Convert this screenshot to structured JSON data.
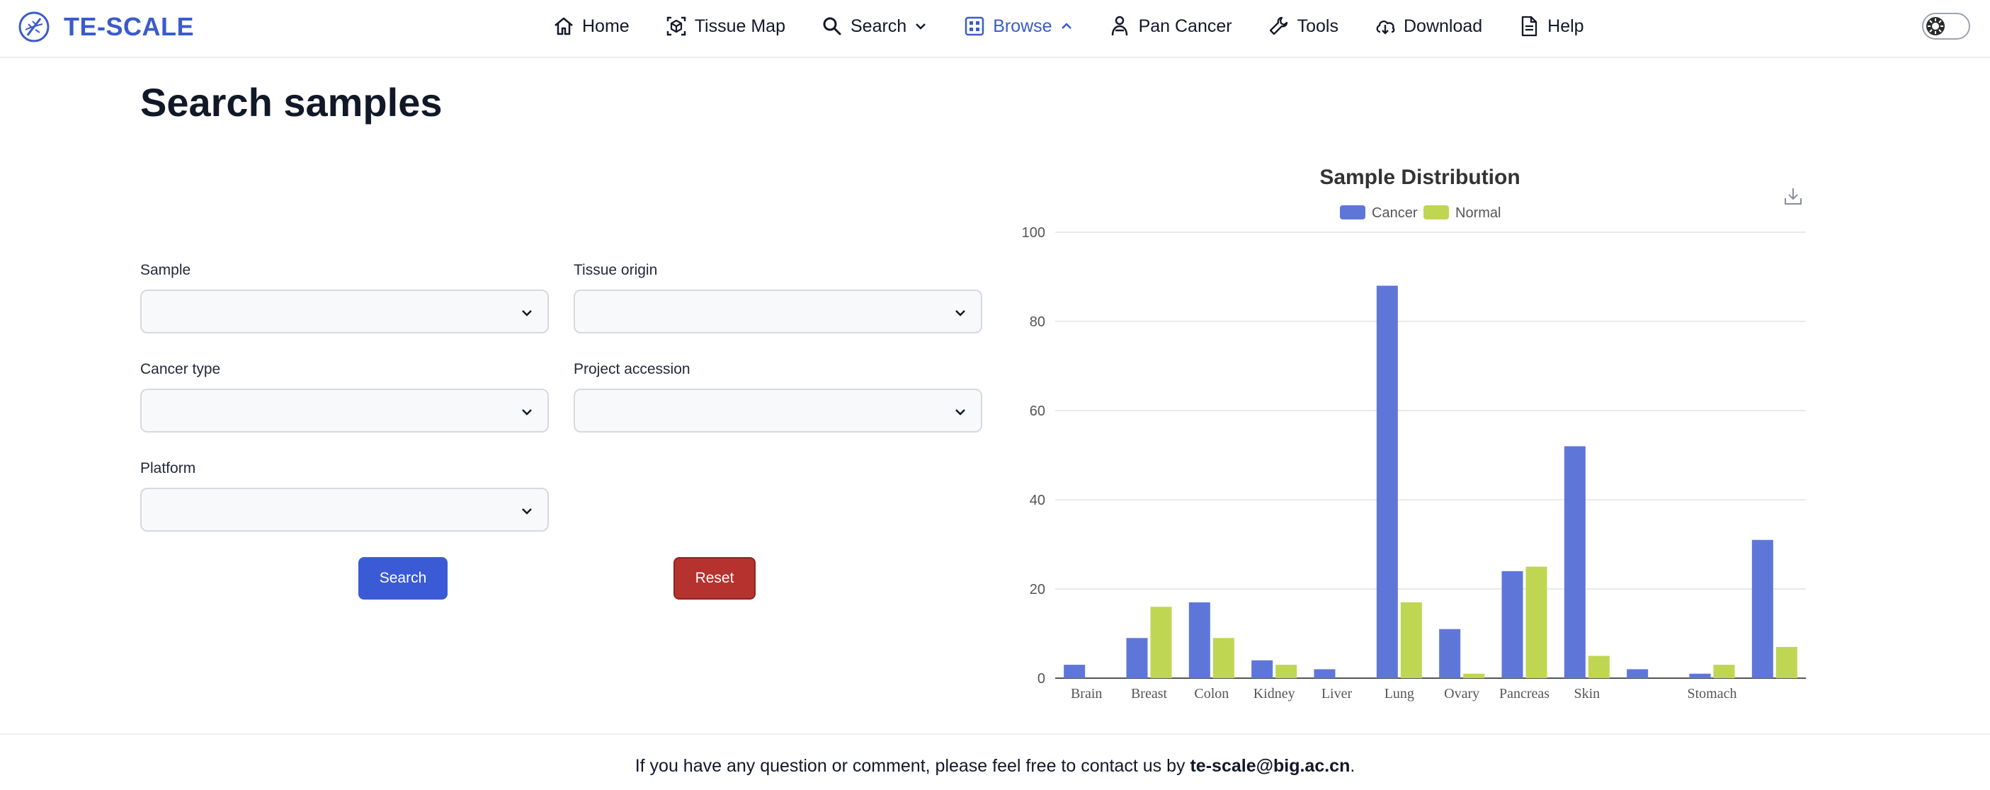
{
  "brand": {
    "name": "TE-SCALE",
    "logo_icon": "dna-circle-logo"
  },
  "nav": {
    "items": [
      {
        "label": "Home",
        "icon": "home-icon"
      },
      {
        "label": "Tissue Map",
        "icon": "tissue-map-icon"
      },
      {
        "label": "Search",
        "icon": "search-icon",
        "has_dropdown": true
      },
      {
        "label": "Browse",
        "icon": "grid-icon",
        "has_dropdown": true,
        "active": true
      },
      {
        "label": "Pan Cancer",
        "icon": "person-icon"
      },
      {
        "label": "Tools",
        "icon": "wrench-icon"
      },
      {
        "label": "Download",
        "icon": "cloud-download-icon"
      },
      {
        "label": "Help",
        "icon": "document-icon"
      }
    ],
    "active_color": "#3b5bcc"
  },
  "page": {
    "title": "Search samples"
  },
  "form": {
    "sample": {
      "label": "Sample",
      "value": ""
    },
    "tissue_origin": {
      "label": "Tissue origin",
      "value": ""
    },
    "cancer_type": {
      "label": "Cancer type",
      "value": ""
    },
    "project_accession": {
      "label": "Project accession",
      "value": ""
    },
    "platform": {
      "label": "Platform",
      "value": ""
    },
    "search_label": "Search",
    "reset_label": "Reset"
  },
  "chart_data": {
    "type": "bar",
    "title": "Sample Distribution",
    "xlabel": "",
    "ylabel": "",
    "ylim": [
      0,
      100
    ],
    "yticks": [
      0,
      20,
      40,
      60,
      80,
      100
    ],
    "grid": true,
    "legend_position": "top-center",
    "categories": [
      "Brain",
      "Breast",
      "Colon",
      "Kidney",
      "Liver",
      "Lung",
      "Ovary",
      "Pancreas",
      "Skin",
      "",
      "Stomach",
      ""
    ],
    "series": [
      {
        "name": "Cancer",
        "color": "#5f76d9",
        "values": [
          3,
          9,
          17,
          4,
          2,
          88,
          11,
          24,
          52,
          2,
          1,
          31
        ]
      },
      {
        "name": "Normal",
        "color": "#bfd653",
        "values": [
          0,
          16,
          9,
          3,
          0,
          17,
          1,
          25,
          5,
          0,
          3,
          7
        ]
      }
    ]
  },
  "footer": {
    "text_before": "If you have any question or comment, please feel free to contact us by ",
    "email": "te-scale@big.ac.cn",
    "text_after": "."
  }
}
